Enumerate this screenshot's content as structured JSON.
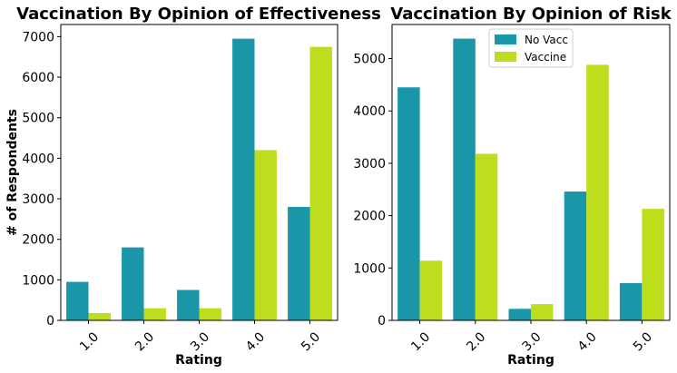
{
  "colors": {
    "no_vacc": "#1996a8",
    "vaccine": "#bcde1c"
  },
  "chart_data": [
    {
      "type": "bar",
      "title": "Vaccination By Opinion of Effectiveness",
      "xlabel": "Rating",
      "ylabel": "# of Respondents",
      "categories": [
        "1.0",
        "2.0",
        "3.0",
        "4.0",
        "5.0"
      ],
      "yticks": [
        0,
        1000,
        2000,
        3000,
        4000,
        5000,
        6000,
        7000
      ],
      "ylim": [
        0,
        7300
      ],
      "legend": false,
      "grid": false,
      "series": [
        {
          "name": "No Vacc",
          "values": [
            950,
            1800,
            750,
            6950,
            2800
          ]
        },
        {
          "name": "Vaccine",
          "values": [
            180,
            300,
            300,
            4200,
            6750
          ]
        }
      ]
    },
    {
      "type": "bar",
      "title": "Vaccination By Opinion of Risk",
      "xlabel": "Rating",
      "ylabel": "",
      "categories": [
        "1.0",
        "2.0",
        "3.0",
        "4.0",
        "5.0"
      ],
      "yticks": [
        0,
        1000,
        2000,
        3000,
        4000,
        5000
      ],
      "ylim": [
        0,
        5650
      ],
      "legend": true,
      "legend_position": "top-center",
      "grid": false,
      "series": [
        {
          "name": "No Vacc",
          "values": [
            4450,
            5380,
            220,
            2460,
            710
          ]
        },
        {
          "name": "Vaccine",
          "values": [
            1140,
            3180,
            310,
            4880,
            2130
          ]
        }
      ]
    }
  ]
}
